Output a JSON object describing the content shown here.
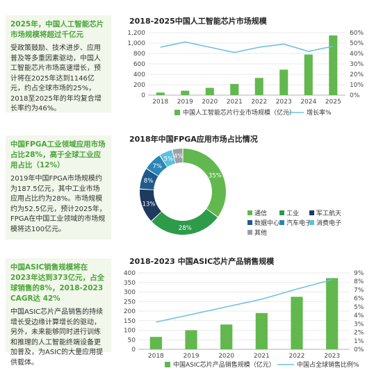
{
  "cards": [
    {
      "headline": "2025年，中国人工智能芯片市场规模将超过千亿元",
      "body": "受政策鼓励、技术进步、应用普及等多重因素驱动，中国人工智能芯片市场高速增长，预计将在2025年达到1146亿元，约占全球市场的25%，2018至2025年的年均复合增长率约为46%。"
    },
    {
      "headline": "中国FPGA工业领域应用市场占比28%，高于全球工业应用占比（12%）",
      "body": "2019年中国FPGA市场规模约为187.5亿元，其中工业市场应用占比约为28%。市场规模约为52.5亿元，预计2025年，FPGA在中国工业领域的市场规模将达100亿元。"
    },
    {
      "headline": "中国ASIC销售规模将在2023年达到373亿元，占全球销售的8%，2018-2023 CAGR达 42%",
      "body": "中国ASIC芯片产品销售的持续增长受边缘计算增长的驱动，另外，未来能够同时进行训练和推理的人工智能终端设备更加普及，为ASIC的大量应用提供载体。"
    }
  ],
  "colors": {
    "green": "#62b84e",
    "line": "#6fc0dd",
    "card_bg": "#f1f7ea",
    "headline": "#4aa43a"
  },
  "chart_data": [
    {
      "type": "bar",
      "title": "2018-2025中国人工智能芯片市场规模",
      "categories": [
        "2018",
        "2019",
        "2020",
        "2021",
        "2022",
        "2023",
        "2024",
        "2025"
      ],
      "series": [
        {
          "name": "中国人工智能芯片行业市场规模（亿元）",
          "type": "bar",
          "axis": "left",
          "values": [
            50,
            85,
            140,
            215,
            330,
            490,
            780,
            1146
          ]
        },
        {
          "name": "增长率%",
          "type": "line",
          "axis": "right",
          "values": [
            46,
            51,
            46,
            41,
            46,
            49,
            42,
            47
          ]
        }
      ],
      "ylim": [
        0,
        1200
      ],
      "yticks": [
        "0",
        "200",
        "400",
        "600",
        "800",
        "1,000",
        "1,200"
      ],
      "y2lim": [
        0,
        60
      ],
      "y2ticks": [
        "0%",
        "10%",
        "20%",
        "30%",
        "40%",
        "50%",
        "60%"
      ],
      "legend": "bottom"
    },
    {
      "type": "pie",
      "title": "2018年中国FPGA应用市场占比情况",
      "slices": [
        {
          "label": "通信",
          "value": 35,
          "text": "35%",
          "color": "#62b84e"
        },
        {
          "label": "工业",
          "value": 28,
          "text": "28%",
          "color": "#2e9b4a"
        },
        {
          "label": "军工航天",
          "value": 13,
          "text": "13%",
          "color": "#1e3a5f"
        },
        {
          "label": "数据中心",
          "value": 8,
          "text": "8%",
          "color": "#1f5a8a"
        },
        {
          "label": "汽车电子",
          "value": 7,
          "text": "7%",
          "color": "#2a86b8"
        },
        {
          "label": "消费电子",
          "value": 5,
          "text": "5%",
          "color": "#5cc0dc"
        },
        {
          "label": "其他",
          "value": 4,
          "text": "4%",
          "color": "#9aa0a6"
        }
      ],
      "legend": "right"
    },
    {
      "type": "bar",
      "title": "2018-2023 中国ASIC芯片产品销售规模",
      "categories": [
        "2018",
        "2019",
        "2020",
        "2021",
        "2022",
        "2023"
      ],
      "series": [
        {
          "name": "中国ASIC芯片产品销售规模（亿元）",
          "type": "bar",
          "axis": "left",
          "values": [
            65,
            100,
            130,
            190,
            275,
            373
          ]
        },
        {
          "name": "中国占全球销售比例%",
          "type": "line",
          "axis": "right",
          "values": [
            3.2,
            4.1,
            5.0,
            5.9,
            7.1,
            8.2
          ]
        }
      ],
      "ylim": [
        0,
        400
      ],
      "yticks": [
        "0",
        "50",
        "100",
        "150",
        "200",
        "250",
        "300",
        "350",
        "400"
      ],
      "y2lim": [
        0,
        9
      ],
      "y2ticks": [
        "0%",
        "1%",
        "2%",
        "3%",
        "4%",
        "5%",
        "6%",
        "7%",
        "8%",
        "9%"
      ],
      "legend": "bottom"
    }
  ]
}
